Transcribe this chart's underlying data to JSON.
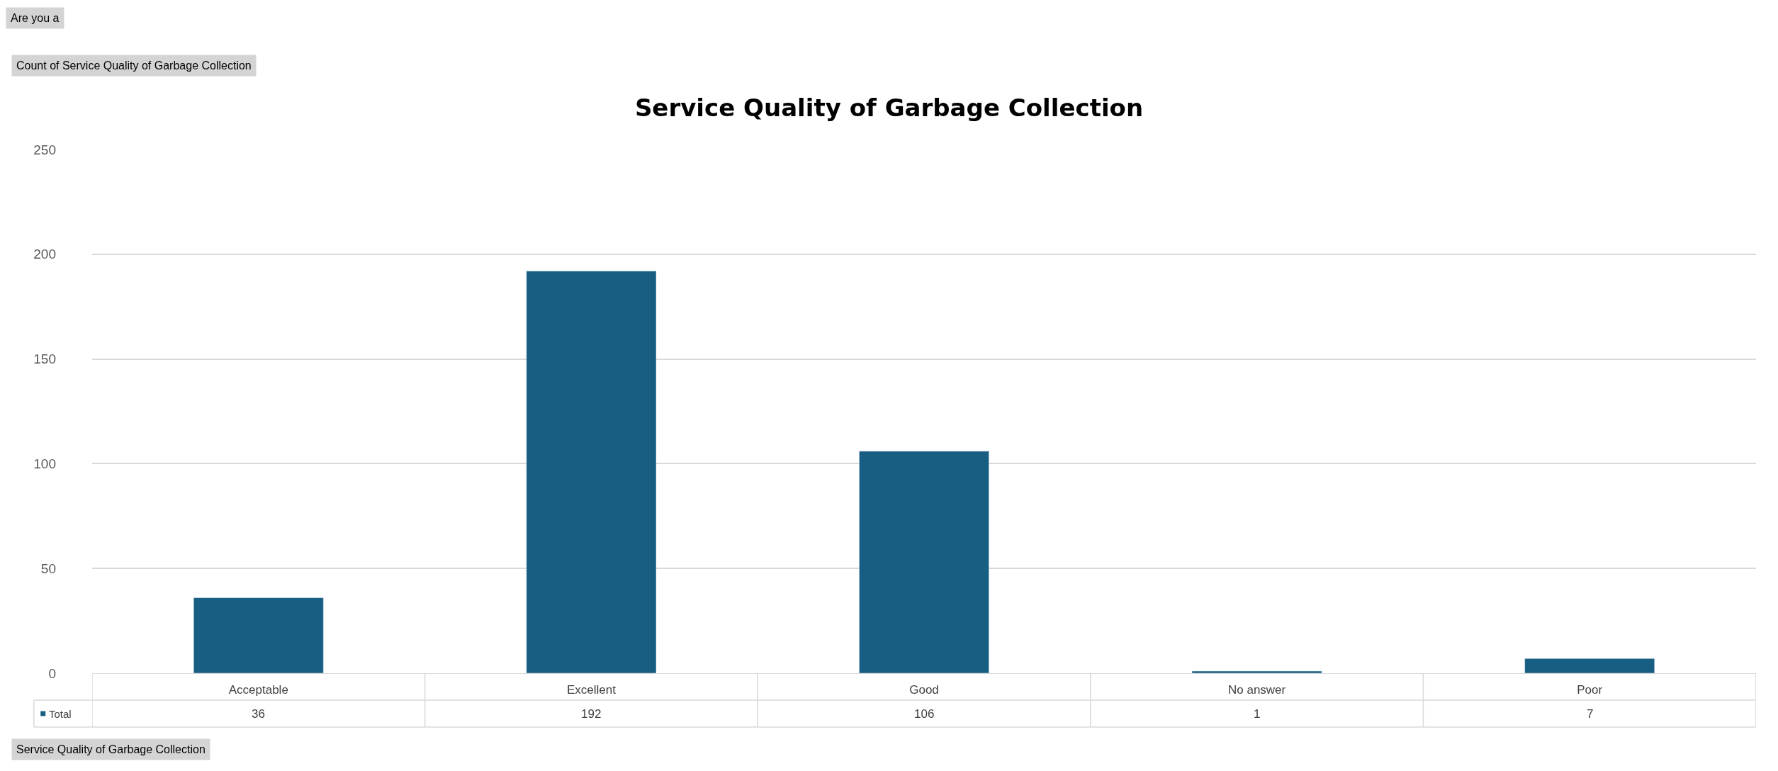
{
  "chart_data": {
    "type": "bar",
    "title": "Service Quality of Garbage Collection",
    "categories": [
      "Acceptable",
      "Excellent",
      "Good",
      "No answer",
      "Poor"
    ],
    "series": [
      {
        "name": "Total",
        "color": "#175e82",
        "values": [
          36,
          192,
          106,
          1,
          7
        ]
      }
    ],
    "ylim": [
      0,
      250
    ],
    "yticks": [
      0,
      50,
      100,
      150,
      200,
      250
    ],
    "grid": "y",
    "legend": "bottom left",
    "data_labels": true,
    "annotations": [
      "Are you a",
      "Count of Service Quality of Garbage Collection",
      "Service Quality of Garbage Collection"
    ]
  }
}
